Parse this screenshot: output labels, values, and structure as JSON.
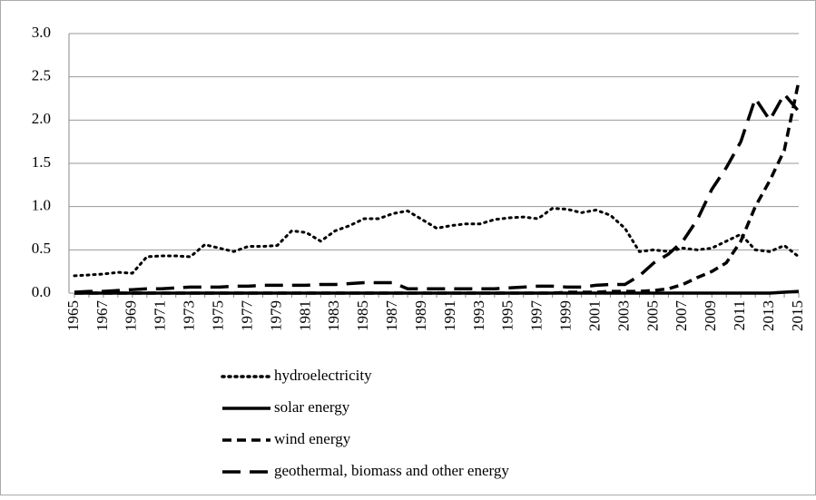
{
  "chart_data": {
    "type": "line",
    "categories": [
      "1965",
      null,
      "1967",
      null,
      "1969",
      null,
      "1971",
      null,
      "1973",
      null,
      "1975",
      null,
      "1977",
      null,
      "1979",
      null,
      "1981",
      null,
      "1983",
      null,
      "1985",
      null,
      "1987",
      null,
      "1989",
      null,
      "1991",
      null,
      "1993",
      null,
      "1995",
      null,
      "1997",
      null,
      "1999",
      null,
      "2001",
      null,
      "2003",
      null,
      "2005",
      null,
      "2007",
      null,
      "2009",
      null,
      "2011",
      null,
      "2013",
      null,
      "2015"
    ],
    "series": [
      {
        "name": "hydroelectricity",
        "color": "#000000",
        "dash": "dotted",
        "values": [
          0.2,
          0.21,
          0.22,
          0.24,
          0.23,
          0.42,
          0.43,
          0.43,
          0.42,
          0.56,
          0.52,
          0.48,
          0.54,
          0.54,
          0.55,
          0.72,
          0.7,
          0.6,
          0.72,
          0.78,
          0.86,
          0.86,
          0.92,
          0.95,
          0.85,
          0.75,
          0.78,
          0.8,
          0.8,
          0.85,
          0.87,
          0.88,
          0.86,
          0.98,
          0.97,
          0.93,
          0.96,
          0.9,
          0.75,
          0.48,
          0.5,
          0.48,
          0.52,
          0.5,
          0.52,
          0.6,
          0.68,
          0.5,
          0.48,
          0.55,
          0.42
        ]
      },
      {
        "name": "solar energy",
        "color": "#000000",
        "dash": "solid",
        "values": [
          0,
          0,
          0,
          0,
          0,
          0,
          0,
          0,
          0,
          0,
          0,
          0,
          0,
          0,
          0,
          0,
          0,
          0,
          0,
          0,
          0,
          0,
          0,
          0,
          0,
          0,
          0,
          0,
          0,
          0,
          0,
          0,
          0,
          0,
          0,
          0,
          0,
          0,
          0,
          0,
          0,
          0,
          0,
          0,
          0,
          0,
          0,
          0,
          0,
          0.01,
          0.02
        ]
      },
      {
        "name": "wind energy",
        "color": "#000000",
        "dash": "short",
        "values": [
          0,
          0,
          0,
          0,
          0,
          0,
          0,
          0,
          0,
          0,
          0,
          0,
          0,
          0,
          0,
          0,
          0,
          0,
          0,
          0,
          0,
          0,
          0,
          0,
          0,
          0,
          0,
          0,
          0,
          0,
          0,
          0,
          0,
          0,
          0.01,
          0.01,
          0.01,
          0.02,
          0.02,
          0.02,
          0.03,
          0.05,
          0.1,
          0.18,
          0.25,
          0.35,
          0.6,
          1.0,
          1.3,
          1.65,
          2.45
        ]
      },
      {
        "name": "geothermal, biomass and other energy",
        "color": "#000000",
        "dash": "long",
        "values": [
          0.01,
          0.02,
          0.02,
          0.03,
          0.04,
          0.05,
          0.05,
          0.06,
          0.07,
          0.07,
          0.07,
          0.08,
          0.08,
          0.09,
          0.09,
          0.09,
          0.09,
          0.1,
          0.1,
          0.11,
          0.12,
          0.12,
          0.12,
          0.05,
          0.05,
          0.05,
          0.05,
          0.05,
          0.05,
          0.05,
          0.06,
          0.07,
          0.08,
          0.08,
          0.07,
          0.07,
          0.09,
          0.1,
          0.1,
          0.2,
          0.35,
          0.45,
          0.6,
          0.85,
          1.2,
          1.45,
          1.75,
          2.25,
          2.0,
          2.3,
          2.1
        ]
      }
    ],
    "ylim": [
      0,
      3
    ],
    "yticks": [
      {
        "value": 0,
        "label": "0.0"
      },
      0.5,
      {
        "value": 1,
        "label": "1.0"
      },
      1.5,
      {
        "value": 2,
        "label": "2.0"
      },
      2.5,
      {
        "value": 3,
        "label": "3.0"
      }
    ],
    "grid": true,
    "legend": "bottom"
  }
}
